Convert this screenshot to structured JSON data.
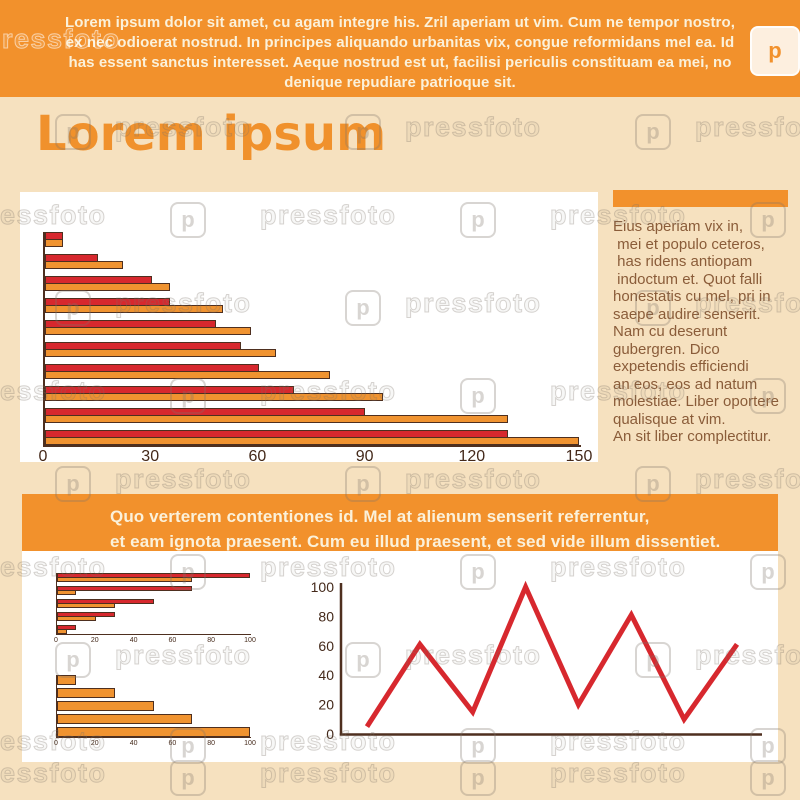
{
  "header": {
    "paragraph_lines": [
      "Lorem ipsum dolor sit amet, cu agam integre his. Zril aperiam ut vim. Cum ne tempor nostro,",
      "ex nec odioerat nostrud. In principes aliquando urbanitas vix, congue reformidans mel ea. Id",
      "has essent sanctus interesset. Aeque nostrud est ut, facilisi periculis constituam ea mei, no",
      "denique repudiare patrioque sit."
    ]
  },
  "title": "Lorem ipsum",
  "sidebar": {
    "text_lines": [
      "Eius aperiam vix in,",
      " mei et populo ceteros,",
      " has ridens antiopam",
      " indoctum et. Quot falli",
      "honestatis cu mel, pri in",
      "saepe audire senserit.",
      "Nam cu deserunt",
      "gubergren. Dico",
      "expetendis efficiendi",
      "an eos, eos ad natum",
      "molestiae. Liber oportere",
      "qualisque at vim.",
      "An sit liber complectitur."
    ]
  },
  "band": {
    "lines": [
      "Quo verterem contentiones id. Mel at alienum senserit referrentur,",
      "et eam ignota praesent. Cum eu illud praesent, et sed vide illum dissentiet."
    ]
  },
  "chart_data": [
    {
      "id": "main-horizontal-bar",
      "type": "bar",
      "orientation": "horizontal",
      "xlim": [
        0,
        150
      ],
      "xticks": [
        "0",
        "30",
        "60",
        "90",
        "120",
        "150"
      ],
      "grid": false,
      "series": [
        {
          "name": "red",
          "color": "#D7282E",
          "values": [
            5,
            15,
            30,
            35,
            48,
            55,
            60,
            70,
            90,
            130
          ]
        },
        {
          "name": "orange",
          "color": "#F09330",
          "values": [
            5,
            22,
            35,
            50,
            58,
            65,
            80,
            95,
            130,
            150
          ]
        }
      ]
    },
    {
      "id": "small-horizontal-bar-top",
      "type": "bar",
      "orientation": "horizontal",
      "xlim": [
        0,
        100
      ],
      "xticks": [
        "0",
        "20",
        "40",
        "60",
        "80",
        "100"
      ],
      "grid": false,
      "series": [
        {
          "name": "red",
          "color": "#D7282E",
          "values": [
            100,
            70,
            50,
            30,
            10
          ]
        },
        {
          "name": "orange",
          "color": "#F09330",
          "values": [
            70,
            10,
            30,
            20,
            5
          ]
        }
      ]
    },
    {
      "id": "small-horizontal-bar-bottom",
      "type": "bar",
      "orientation": "horizontal",
      "xlim": [
        0,
        100
      ],
      "xticks": [
        "0",
        "20",
        "40",
        "60",
        "80",
        "100"
      ],
      "grid": false,
      "series": [
        {
          "name": "orange",
          "color": "#F09330",
          "values": [
            10,
            30,
            50,
            70,
            100
          ]
        }
      ]
    },
    {
      "id": "zigzag-line",
      "type": "line",
      "ylim": [
        0,
        100
      ],
      "yticks": [
        "0",
        "20",
        "40",
        "60",
        "80",
        "100"
      ],
      "color": "#D7282E",
      "values": [
        5,
        61,
        15,
        100,
        20,
        81,
        10,
        61
      ]
    }
  ],
  "watermark": {
    "text": "pressfoto",
    "logo_letter": "p"
  },
  "colors": {
    "orange": "#F2912C",
    "red": "#D7282E",
    "bar_orange": "#F09330",
    "cream_background": "#F6E1BF",
    "panel_white": "#FFFFFF",
    "sidebar_text_brown": "#8A5C39",
    "axis_text_brown": "#44291A",
    "bar_outline_brown": "#4E2F1F",
    "header_text_cream": "#FBF1DA"
  }
}
